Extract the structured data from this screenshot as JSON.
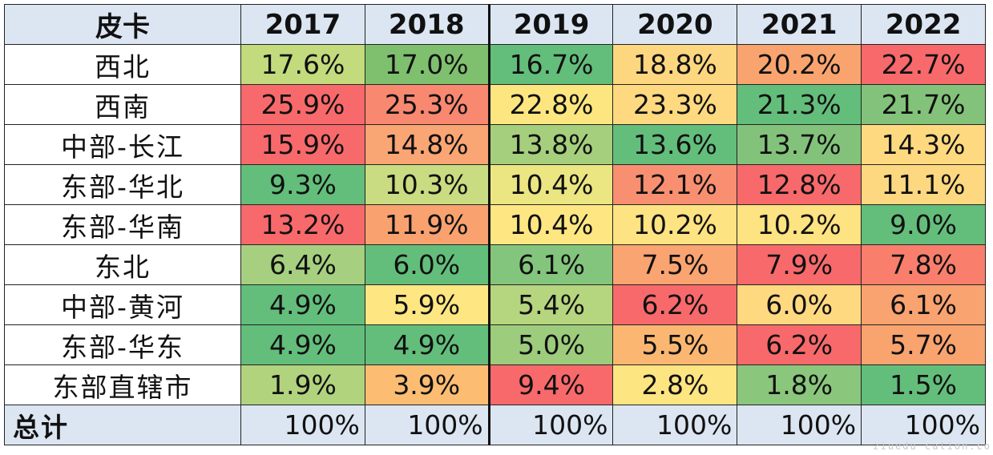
{
  "chart_data": {
    "type": "table",
    "corner_label": "皮卡",
    "years": [
      "2017",
      "2018",
      "2019",
      "2020",
      "2021",
      "2022"
    ],
    "rows": [
      {
        "label": "西北",
        "values": [
          "17.6%",
          "17.0%",
          "16.7%",
          "18.8%",
          "20.2%",
          "22.7%"
        ],
        "colors": [
          "#c3da7d",
          "#7fc06f",
          "#63be7b",
          "#fcd77f",
          "#f9a46f",
          "#f8696b"
        ]
      },
      {
        "label": "西南",
        "values": [
          "25.9%",
          "25.3%",
          "22.8%",
          "23.3%",
          "21.3%",
          "21.7%"
        ],
        "colors": [
          "#f8696b",
          "#f98870",
          "#fde67f",
          "#fed980",
          "#63be7b",
          "#83c27a"
        ]
      },
      {
        "label": "中部-长江",
        "values": [
          "15.9%",
          "14.8%",
          "13.8%",
          "13.6%",
          "13.7%",
          "14.3%"
        ],
        "colors": [
          "#f8696b",
          "#faa574",
          "#a5cf7c",
          "#63be7b",
          "#83c27a",
          "#fed980"
        ]
      },
      {
        "label": "东部-华北",
        "values": [
          "9.3%",
          "10.3%",
          "10.4%",
          "12.1%",
          "12.8%",
          "11.1%"
        ],
        "colors": [
          "#63be7b",
          "#c9dc81",
          "#ebe582",
          "#f98f71",
          "#f8696b",
          "#fed880"
        ]
      },
      {
        "label": "东部-华南",
        "values": [
          "13.2%",
          "11.9%",
          "10.4%",
          "10.2%",
          "10.2%",
          "9.0%"
        ],
        "colors": [
          "#f8696b",
          "#f9a26f",
          "#fee782",
          "#fde381",
          "#fde381",
          "#63be7b"
        ]
      },
      {
        "label": "东北",
        "values": [
          "6.4%",
          "6.0%",
          "6.1%",
          "7.5%",
          "7.9%",
          "7.8%"
        ],
        "colors": [
          "#a6d07f",
          "#63be7b",
          "#84c57d",
          "#faa471",
          "#f8696b",
          "#f97f6c"
        ]
      },
      {
        "label": "中部-黄河",
        "values": [
          "4.9%",
          "5.9%",
          "5.4%",
          "6.2%",
          "6.0%",
          "6.1%"
        ],
        "colors": [
          "#63be7b",
          "#fee782",
          "#b6d57f",
          "#f8696b",
          "#fed980",
          "#f9a371"
        ]
      },
      {
        "label": "东部-华东",
        "values": [
          "4.9%",
          "4.9%",
          "5.0%",
          "5.5%",
          "6.2%",
          "5.7%"
        ],
        "colors": [
          "#63be7b",
          "#63be7b",
          "#9ccc7c",
          "#fbb772",
          "#f8696b",
          "#f9a36f"
        ]
      },
      {
        "label": "东部直辖市",
        "values": [
          "1.9%",
          "3.9%",
          "9.4%",
          "2.8%",
          "1.8%",
          "1.5%"
        ],
        "colors": [
          "#b1d37e",
          "#fcbd73",
          "#f8696b",
          "#fde581",
          "#8ac67c",
          "#63be7b"
        ]
      }
    ],
    "total": {
      "label": "总计",
      "values": [
        "100%",
        "100%",
        "100%",
        "100%",
        "100%",
        "100%"
      ]
    }
  },
  "watermark": "ziuedu cation.co"
}
